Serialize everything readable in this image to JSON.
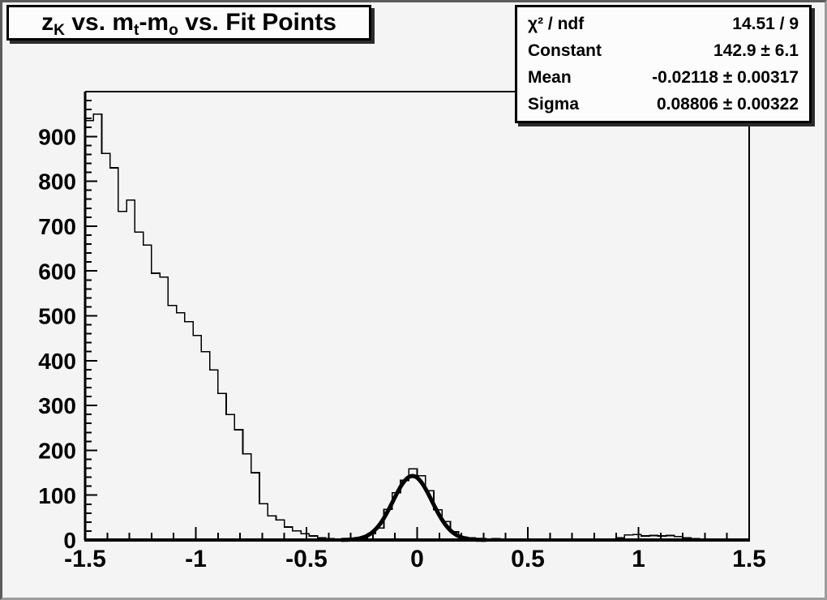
{
  "canvas": {
    "background": "#f4f4f4",
    "pave_background": "#fcfcfc",
    "line_color": "#000000",
    "text_color": "#000000"
  },
  "title": {
    "plain": "z_K vs. m_t-m_o vs. Fit Points",
    "segments": [
      {
        "t": "z"
      },
      {
        "t": "K",
        "sub": true
      },
      {
        "t": " vs. m"
      },
      {
        "t": "t",
        "sub": true
      },
      {
        "t": "-m"
      },
      {
        "t": "o",
        "sub": true
      },
      {
        "t": " vs. Fit Points"
      }
    ]
  },
  "stats": {
    "rows": [
      {
        "label": "χ² / ndf",
        "value": "14.51 / 9"
      },
      {
        "label": "Constant",
        "value": "142.9 ± 6.1"
      },
      {
        "label": "Mean",
        "value": "-0.02118 ± 0.00317"
      },
      {
        "label": "Sigma",
        "value": "0.08806 ± 0.00322"
      }
    ]
  },
  "chart_data": {
    "type": "bar",
    "subtype": "histogram-with-gaussian-fit",
    "title": "z_K vs. m_t-m_o vs. Fit Points",
    "xlabel": "",
    "ylabel": "",
    "xlim": [
      -1.5,
      1.5
    ],
    "ylim": [
      0,
      1000
    ],
    "grid": false,
    "legend_position": "none",
    "x_major_ticks": [
      -1.5,
      -1,
      -0.5,
      0,
      0.5,
      1,
      1.5
    ],
    "x_tick_labels": [
      "-1.5",
      "-1",
      "-0.5",
      "0",
      "0.5",
      "1",
      "1.5"
    ],
    "x_minor_step": 0.1,
    "y_major_step": 100,
    "y_minor_step": 20,
    "y_max_labeled_tick": 900,
    "y_tick_labels": [
      "0",
      "100",
      "200",
      "300",
      "400",
      "500",
      "600",
      "700",
      "800",
      "900"
    ],
    "bins": {
      "start": -1.5,
      "width": 0.0375,
      "values": [
        935,
        950,
        862,
        830,
        733,
        758,
        687,
        658,
        595,
        586,
        523,
        507,
        487,
        456,
        420,
        379,
        327,
        280,
        246,
        192,
        150,
        81,
        54,
        45,
        29,
        20,
        14,
        9,
        5,
        3,
        2,
        1,
        2,
        4,
        14,
        27,
        68,
        105,
        133,
        159,
        143,
        110,
        67,
        41,
        18,
        7,
        5,
        2,
        1,
        3,
        2,
        1,
        1,
        0,
        1,
        0,
        1,
        0,
        1,
        0,
        1,
        0,
        1,
        2,
        5,
        11,
        12,
        9,
        10,
        9,
        10,
        8,
        5,
        3,
        2,
        2,
        1,
        0,
        0,
        0
      ]
    },
    "fit_curve": {
      "type": "gaussian",
      "constant": 142.9,
      "mean": -0.02118,
      "sigma": 0.08806,
      "chi2": 14.51,
      "ndf": 9,
      "draw_range": [
        -0.34,
        0.31
      ]
    }
  }
}
